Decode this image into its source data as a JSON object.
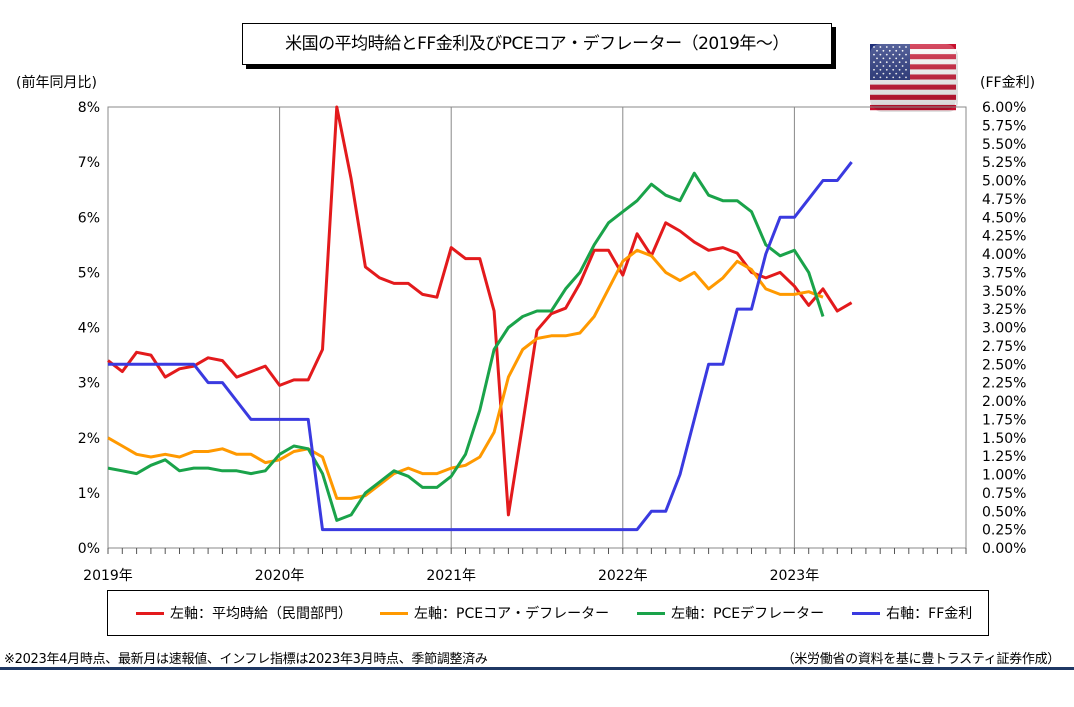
{
  "title": "米国の平均時給とFF金利及びPCEコア・デフレーター（2019年～）",
  "left_axis_title": "(前年同月比)",
  "right_axis_title": "(FF金利)",
  "note": "※2023年4月時点、最新月は速報値、インフレ指標は2023年3月時点、季節調整済み",
  "source": "（米労働省の資料を基に豊トラスティ証券作成）",
  "flag_icon": "us-flag-icon",
  "chart_data": {
    "type": "line",
    "x_start": "2019-01",
    "x_labels": [
      "2019年",
      "2020年",
      "2021年",
      "2022年",
      "2023年"
    ],
    "left_axis": {
      "ticks": [
        "0%",
        "1%",
        "2%",
        "3%",
        "4%",
        "5%",
        "6%",
        "7%",
        "8%"
      ],
      "ylim": [
        0,
        8
      ]
    },
    "right_axis": {
      "ticks": [
        "0.00%",
        "0.25%",
        "0.50%",
        "0.75%",
        "1.00%",
        "1.25%",
        "1.50%",
        "1.75%",
        "2.00%",
        "2.25%",
        "2.50%",
        "2.75%",
        "3.00%",
        "3.25%",
        "3.50%",
        "3.75%",
        "4.00%",
        "4.25%",
        "4.50%",
        "4.75%",
        "5.00%",
        "5.25%",
        "5.50%",
        "5.75%",
        "6.00%"
      ],
      "ylim": [
        0,
        6
      ]
    },
    "grid": "vertical-yearly",
    "legend_position": "bottom",
    "series": [
      {
        "name": "左軸：平均時給（民間部門）",
        "axis": "left",
        "color": "#e31a1c",
        "values": [
          3.4,
          3.2,
          3.55,
          3.5,
          3.1,
          3.25,
          3.3,
          3.45,
          3.4,
          3.1,
          3.2,
          3.3,
          2.95,
          3.05,
          3.05,
          3.6,
          8.0,
          6.7,
          5.1,
          4.9,
          4.8,
          4.8,
          4.6,
          4.55,
          5.45,
          5.25,
          5.25,
          4.3,
          0.6,
          2.25,
          3.95,
          4.25,
          4.35,
          4.8,
          5.4,
          5.4,
          4.95,
          5.7,
          5.3,
          5.9,
          5.75,
          5.55,
          5.4,
          5.45,
          5.35,
          5.0,
          4.9,
          5.0,
          4.75,
          4.4,
          4.7,
          4.3,
          4.45
        ]
      },
      {
        "name": "左軸：PCEコア・デフレーター",
        "axis": "left",
        "color": "#ff9900",
        "values": [
          2.0,
          1.85,
          1.7,
          1.65,
          1.7,
          1.65,
          1.75,
          1.75,
          1.8,
          1.7,
          1.7,
          1.55,
          1.6,
          1.75,
          1.8,
          1.65,
          0.9,
          0.9,
          0.95,
          1.15,
          1.35,
          1.45,
          1.35,
          1.35,
          1.45,
          1.5,
          1.65,
          2.1,
          3.1,
          3.6,
          3.8,
          3.85,
          3.85,
          3.9,
          4.2,
          4.7,
          5.2,
          5.4,
          5.3,
          5.0,
          4.85,
          5.0,
          4.7,
          4.9,
          5.2,
          5.05,
          4.7,
          4.6,
          4.6,
          4.65,
          4.55
        ]
      },
      {
        "name": "左軸：PCEデフレーター",
        "axis": "left",
        "color": "#1aa34a",
        "values": [
          1.45,
          1.4,
          1.35,
          1.5,
          1.6,
          1.4,
          1.45,
          1.45,
          1.4,
          1.4,
          1.35,
          1.4,
          1.7,
          1.85,
          1.8,
          1.35,
          0.5,
          0.6,
          1.0,
          1.2,
          1.4,
          1.3,
          1.1,
          1.1,
          1.3,
          1.7,
          2.5,
          3.6,
          4.0,
          4.2,
          4.3,
          4.3,
          4.7,
          5.0,
          5.5,
          5.9,
          6.1,
          6.3,
          6.6,
          6.4,
          6.3,
          6.8,
          6.4,
          6.3,
          6.3,
          6.1,
          5.5,
          5.3,
          5.4,
          5.0,
          4.2
        ]
      },
      {
        "name": "右軸：FF金利",
        "axis": "right",
        "color": "#3a3ae0",
        "values": [
          2.5,
          2.5,
          2.5,
          2.5,
          2.5,
          2.5,
          2.5,
          2.25,
          2.25,
          2.0,
          1.75,
          1.75,
          1.75,
          1.75,
          1.75,
          0.25,
          0.25,
          0.25,
          0.25,
          0.25,
          0.25,
          0.25,
          0.25,
          0.25,
          0.25,
          0.25,
          0.25,
          0.25,
          0.25,
          0.25,
          0.25,
          0.25,
          0.25,
          0.25,
          0.25,
          0.25,
          0.25,
          0.25,
          0.5,
          0.5,
          1.0,
          1.75,
          2.5,
          2.5,
          3.25,
          3.25,
          4.0,
          4.5,
          4.5,
          4.75,
          5.0,
          5.0,
          5.25
        ]
      }
    ]
  }
}
